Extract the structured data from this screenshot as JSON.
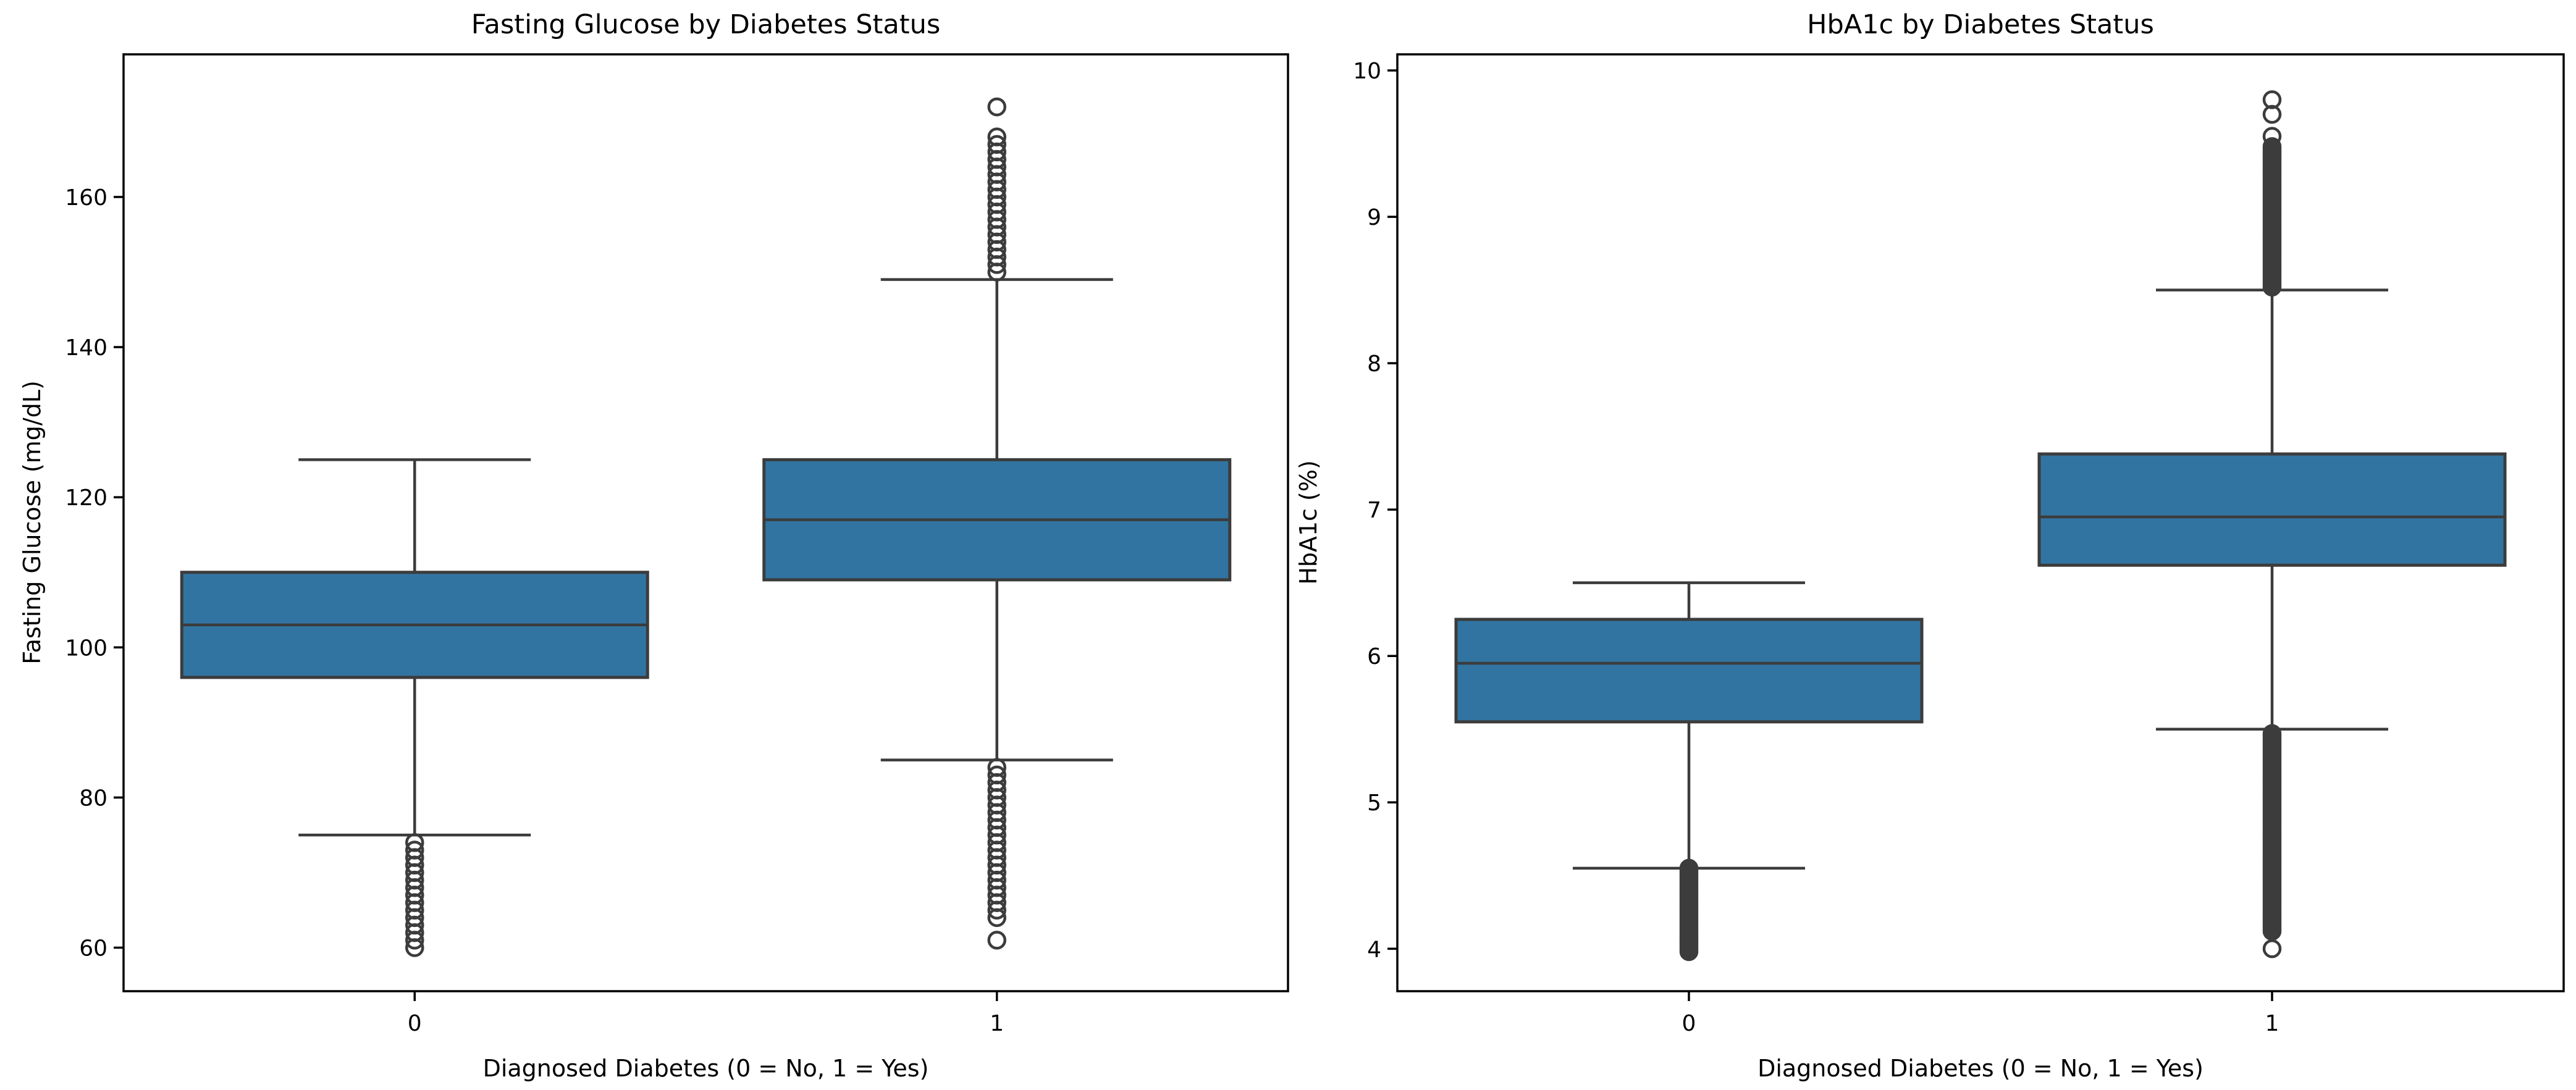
{
  "figure": {
    "background": "#ffffff",
    "colors": {
      "box_fill": "#3274a1",
      "box_edge": "#3c3c3c",
      "whisker": "#3c3c3c",
      "median": "#3c3c3c",
      "flier_edge": "#3c3c3c",
      "spine": "#000000",
      "tick": "#000000",
      "text": "#000000"
    }
  },
  "chart_data": [
    {
      "type": "boxplot",
      "title": "Fasting Glucose by Diabetes Status",
      "xlabel": "Diagnosed Diabetes (0 = No, 1 = Yes)",
      "ylabel": "Fasting Glucose (mg/dL)",
      "categories": [
        "0",
        "1"
      ],
      "ylim": [
        54.2,
        179.0
      ],
      "yticks": [
        60,
        80,
        100,
        120,
        140,
        160
      ],
      "grid": false,
      "legend": "none",
      "groups": [
        {
          "category": "0",
          "whislo": 75,
          "q1": 96,
          "med": 103,
          "q3": 110,
          "whishi": 125,
          "outliers": [
            60,
            61,
            62,
            63,
            64,
            65,
            66,
            67,
            68,
            69,
            70,
            71,
            72,
            73,
            74
          ],
          "outlier_ranges": []
        },
        {
          "category": "1",
          "whislo": 85,
          "q1": 109,
          "med": 117,
          "q3": 125,
          "whishi": 149,
          "outliers": [
            61,
            64,
            65,
            66,
            67,
            68,
            69,
            70,
            71,
            72,
            73,
            74,
            75,
            76,
            77,
            78,
            79,
            80,
            81,
            82,
            83,
            84,
            150,
            151,
            152,
            153,
            154,
            155,
            156,
            157,
            158,
            159,
            160,
            161,
            162,
            163,
            164,
            165,
            166,
            167,
            168,
            172
          ],
          "outlier_ranges": []
        }
      ]
    },
    {
      "type": "boxplot",
      "title": "HbA1c by Diabetes Status",
      "xlabel": "Diagnosed Diabetes (0 = No, 1 = Yes)",
      "ylabel": "HbA1c (%)",
      "categories": [
        "0",
        "1"
      ],
      "ylim": [
        3.71,
        10.11
      ],
      "yticks": [
        4,
        5,
        6,
        7,
        8,
        9,
        10
      ],
      "grid": false,
      "legend": "none",
      "groups": [
        {
          "category": "0",
          "whislo": 4.55,
          "q1": 5.55,
          "med": 5.95,
          "q3": 6.25,
          "whishi": 6.5,
          "outliers": [],
          "outlier_ranges": [
            {
              "from": 3.98,
              "to": 4.56,
              "step": 0.015
            }
          ]
        },
        {
          "category": "1",
          "whislo": 5.5,
          "q1": 6.62,
          "med": 6.95,
          "q3": 7.38,
          "whishi": 8.5,
          "outliers": [
            4.0,
            9.55,
            9.7,
            9.8
          ],
          "outlier_ranges": [
            {
              "from": 4.12,
              "to": 5.48,
              "step": 0.015
            },
            {
              "from": 8.52,
              "to": 9.48,
              "step": 0.015
            }
          ]
        }
      ]
    }
  ]
}
